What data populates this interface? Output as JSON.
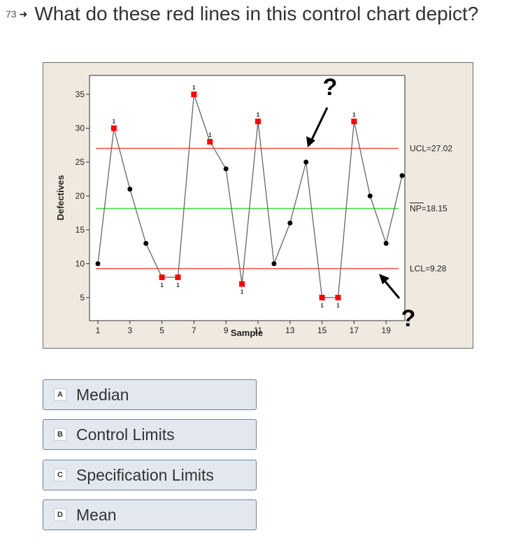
{
  "question": {
    "number": "73",
    "arrow_icon": "right-arrow-icon",
    "text": "What do these red lines in this control chart depict?"
  },
  "chart_data": {
    "type": "line",
    "xlabel": "Sample",
    "ylabel": "Defectives",
    "x_ticks": [
      1,
      3,
      5,
      7,
      9,
      11,
      13,
      15,
      17,
      19
    ],
    "y_ticks": [
      5,
      10,
      15,
      20,
      25,
      30,
      35
    ],
    "xlim": [
      1,
      20
    ],
    "ylim": [
      3.5,
      36.5
    ],
    "x": [
      1,
      2,
      3,
      4,
      5,
      6,
      7,
      8,
      9,
      10,
      11,
      12,
      13,
      14,
      15,
      16,
      17,
      18,
      19,
      20
    ],
    "values": [
      10,
      30,
      21,
      13,
      8,
      8,
      35,
      28,
      24,
      7,
      31,
      10,
      16,
      25,
      5,
      5,
      31,
      20,
      13,
      23
    ],
    "flagged": [
      false,
      true,
      false,
      false,
      true,
      true,
      true,
      true,
      false,
      true,
      true,
      false,
      false,
      false,
      true,
      true,
      true,
      false,
      false,
      false
    ],
    "flag_label": "1",
    "lines": [
      {
        "label": "UCL=27.02",
        "value": 27.02,
        "color": "#ff3333"
      },
      {
        "label": "NP=18.15",
        "value": 18.15,
        "color": "#33dd33"
      },
      {
        "label": "LCL=9.28",
        "value": 9.28,
        "color": "#ff3333"
      }
    ],
    "annotation": "?",
    "grid": false,
    "colors": {
      "point": "#000000",
      "flagged": "#ff0000",
      "connector": "#666666"
    }
  },
  "options": [
    {
      "letter": "A",
      "text": "Median"
    },
    {
      "letter": "B",
      "text": "Control Limits"
    },
    {
      "letter": "C",
      "text": "Specification Limits"
    },
    {
      "letter": "D",
      "text": "Mean"
    }
  ]
}
